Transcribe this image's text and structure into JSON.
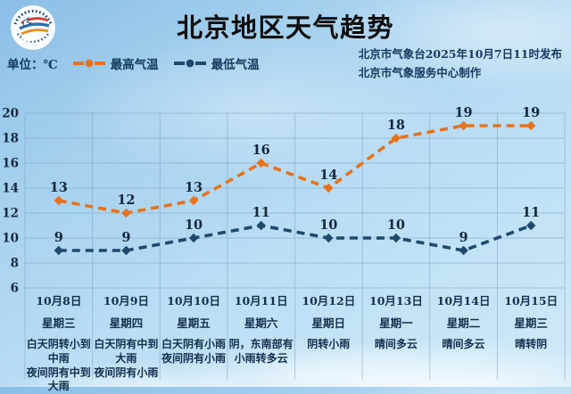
{
  "header": {
    "title": "北京地区天气趋势",
    "logo_icon": "meteorological-service-emblem",
    "unit_label": "单位：℃",
    "issued_by": "北京市气象台2025年10月7日11时发布",
    "produced_by": "北京市气象服务中心制作"
  },
  "legend": {
    "position": "top-left",
    "items": [
      {
        "label": "最高气温",
        "color": "#E6731C",
        "swatch": "orange-dash-dot-line"
      },
      {
        "label": "最低气温",
        "color": "#1F4A6E",
        "swatch": "navy-dash-dot-line"
      }
    ]
  },
  "colors": {
    "max_temp_line": "#E6731C",
    "min_temp_line": "#1F4A6E",
    "label_text": "#14283c",
    "table_text": "#14304d",
    "sky_background": "#a9d4f0",
    "grid_line": "#7396b9"
  },
  "chart_data": {
    "type": "line",
    "line_style": "dashed",
    "marker": "diamond",
    "grid": true,
    "ylim": [
      6,
      20
    ],
    "ytick_step": 2,
    "categories": [
      "10月8日",
      "10月9日",
      "10月10日",
      "10月11日",
      "10月12日",
      "10月13日",
      "10月14日",
      "10月15日"
    ],
    "weekdays": [
      "星期三",
      "星期四",
      "星期五",
      "星期六",
      "星期日",
      "星期一",
      "星期二",
      "星期三"
    ],
    "weather": [
      "白天阴转小到中雨\n夜间阴有中到大雨",
      "白天阴有中到大雨\n夜间阴有小雨",
      "白天阴有小雨\n夜间阴有小雨",
      "阴，东南部有小雨转多云",
      "阴转小雨",
      "晴间多云",
      "晴间多云",
      "晴转阴"
    ],
    "series": [
      {
        "name": "最高气温",
        "color": "#E6731C",
        "values": [
          13,
          12,
          13,
          16,
          14,
          18,
          19,
          19
        ]
      },
      {
        "name": "最低气温",
        "color": "#1F4A6E",
        "values": [
          9,
          9,
          10,
          11,
          10,
          10,
          9,
          11
        ]
      }
    ]
  }
}
